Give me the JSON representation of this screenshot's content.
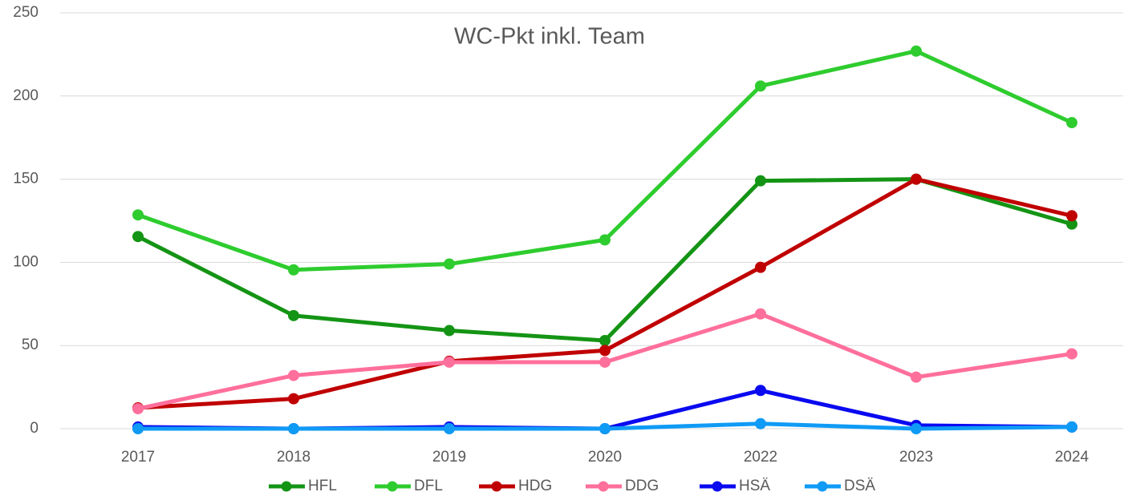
{
  "chart_data": {
    "type": "line",
    "title": "WC-Pkt inkl. Team",
    "categories": [
      "2017",
      "2018",
      "2019",
      "2020",
      "2022",
      "2023",
      "2024"
    ],
    "series": [
      {
        "name": "HFL",
        "color": "#149414",
        "values": [
          115.5,
          68,
          59,
          53,
          149,
          150,
          123
        ]
      },
      {
        "name": "DFL",
        "color": "#2ecc2e",
        "values": [
          128.5,
          95.5,
          99,
          113.5,
          206,
          227,
          184
        ]
      },
      {
        "name": "HDG",
        "color": "#c00000",
        "values": [
          12.5,
          18,
          40.5,
          47,
          97,
          150,
          128
        ]
      },
      {
        "name": "DDG",
        "color": "#ff6f9c",
        "values": [
          12,
          32,
          40,
          40,
          69,
          31,
          45
        ]
      },
      {
        "name": "HSÄ",
        "color": "#0a0af0",
        "values": [
          1,
          0,
          1,
          0,
          23,
          2,
          1
        ]
      },
      {
        "name": "DSÄ",
        "color": "#0f9bf5",
        "values": [
          0,
          0,
          0,
          0,
          3,
          0,
          1
        ]
      }
    ],
    "ylim": [
      0,
      250
    ],
    "yticks": [
      0,
      50,
      100,
      150,
      200,
      250
    ],
    "grid": true,
    "legend": "bottom"
  }
}
